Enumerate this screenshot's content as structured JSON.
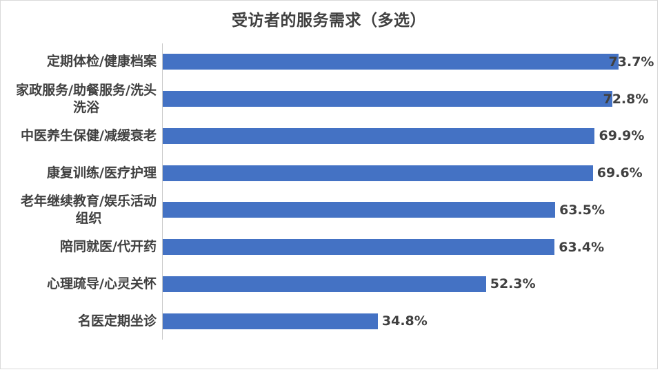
{
  "chart_data": {
    "type": "bar",
    "orientation": "horizontal",
    "title": "受访者的服务需求（多选）",
    "categories": [
      "定期体检/健康档案",
      "家政服务/助餐服务/洗头\n洗浴",
      "中医养生保健/减缓衰老",
      "康复训练/医疗护理",
      "老年继续教育/娱乐活动\n组织",
      "陪同就医/代开药",
      "心理疏导/心灵关怀",
      "名医定期坐诊"
    ],
    "values": [
      73.7,
      72.8,
      69.9,
      69.6,
      63.5,
      63.4,
      52.3,
      34.8
    ],
    "value_labels": [
      "73.7%",
      "72.8%",
      "69.9%",
      "69.6%",
      "63.5%",
      "63.4%",
      "52.3%",
      "34.8%"
    ],
    "xlabel": "",
    "ylabel": "",
    "xlim": [
      0,
      80
    ],
    "grid": false,
    "legend": false,
    "data_labels_position": "outside-end",
    "bar_color": "#4472C4",
    "text_color": "#404040",
    "axis_line_color": "#C9C9C9",
    "frame_border_color": "#D9D9D9"
  }
}
